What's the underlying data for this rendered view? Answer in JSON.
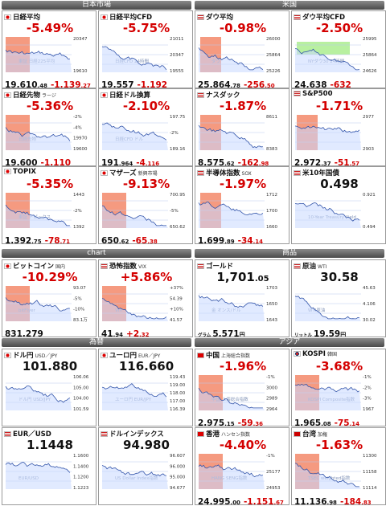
{
  "sections": {
    "japan": "日本市場",
    "us": "米国",
    "chart": "chart",
    "commodity": "商品",
    "fx": "為替",
    "asia": "アジア"
  },
  "panels": [
    {
      "id": "nikkei",
      "flag": "jp",
      "title": "日経平均",
      "sub": "",
      "pct": "-5.49%",
      "main": "19,610",
      "dec": ".48",
      "chg": "-1,139",
      "chgdec": ".27",
      "ticks": [
        "20347",
        "19610"
      ],
      "wm": "東証 日経225平均",
      "prev": "",
      "shade": "left"
    },
    {
      "id": "nikkeicfd",
      "flag": "jp",
      "title": "日経平均CFD",
      "sub": "",
      "pct": "-5.75%",
      "main": "19,557",
      "dec": "",
      "chg": "-1,192",
      "chgdec": "",
      "ticks": [
        "21011",
        "20347",
        "19555"
      ],
      "wm": "日経CFD 24時間",
      "prev": "",
      "shade": "none"
    },
    {
      "id": "dow",
      "flag": "us",
      "title": "ダウ平均",
      "sub": "",
      "pct": "-0.98%",
      "main": "25,864",
      "dec": ".78",
      "chg": "-256",
      "chgdec": ".50",
      "ticks": [
        "26000",
        "25864",
        "25226"
      ],
      "wm": "ダウ",
      "prev": "",
      "shade": "right"
    },
    {
      "id": "dowcfd",
      "flag": "us",
      "title": "ダウ平均CFD",
      "sub": "",
      "pct": "-2.50%",
      "main": "24,638",
      "dec": "",
      "chg": "-632",
      "chgdec": "",
      "ticks": [
        "25995",
        "25864",
        "24626"
      ],
      "wm": "NYダウ30 24時間",
      "prev": "",
      "shade": "green"
    },
    {
      "id": "nikkeifut",
      "flag": "jp",
      "title": "日経先物",
      "sub": "ラージ",
      "pct": "-5.36%",
      "main": "19,600",
      "dec": "",
      "chg": "-1,110",
      "chgdec": "",
      "ticks": [
        "-2%",
        "-4%",
        "19970",
        "19600"
      ],
      "wm": "日経先物",
      "prev": "",
      "shade": "left"
    },
    {
      "id": "nikkeiusd",
      "flag": "jp",
      "title": "日経ドル換算",
      "sub": "",
      "pct": "-2.10%",
      "main": "191",
      "dec": ".964",
      "chg": "-4",
      "chgdec": ".116",
      "ticks": [
        "197.75",
        "-2%",
        "189.16"
      ],
      "wm": "日経CFD ドル",
      "prev": "",
      "shade": "none"
    },
    {
      "id": "nasdaq",
      "flag": "us",
      "title": "ナスダック",
      "sub": "",
      "pct": "-1.87%",
      "main": "8,575",
      "dec": ".62",
      "chg": "-162",
      "chgdec": ".98",
      "ticks": [
        "8611",
        "8383"
      ],
      "wm": "",
      "prev": "",
      "shade": "right"
    },
    {
      "id": "sp500",
      "flag": "us",
      "title": "S&P500",
      "sub": "",
      "pct": "-1.71%",
      "main": "2,972",
      "dec": ".37",
      "chg": "-51",
      "chgdec": ".57",
      "ticks": [
        "2977",
        "2903"
      ],
      "wm": "",
      "prev": "",
      "shade": "right"
    },
    {
      "id": "topix",
      "flag": "jp",
      "title": "TOPIX",
      "sub": "",
      "pct": "-5.35%",
      "main": "1,392",
      "dec": ".75",
      "chg": "-78",
      "chgdec": ".71",
      "ticks": [
        "1443",
        "-2%",
        "1392"
      ],
      "wm": "東証 トピックス",
      "prev": "",
      "shade": "left"
    },
    {
      "id": "mothers",
      "flag": "jp",
      "title": "マザーズ",
      "sub": "新興市場",
      "pct": "-9.13%",
      "main": "650",
      "dec": ".62",
      "chg": "-65",
      "chgdec": ".38",
      "ticks": [
        "700.95",
        "-5%",
        "650.62"
      ],
      "wm": "",
      "prev": "",
      "shade": "left"
    },
    {
      "id": "sox",
      "flag": "us",
      "title": "半導体指数",
      "sub": "SOX",
      "pct": "-1.97%",
      "main": "1,699",
      "dec": ".89",
      "chg": "-34",
      "chgdec": ".14",
      "ticks": [
        "1712",
        "1700",
        "1660"
      ],
      "wm": "",
      "prev": "",
      "shade": "right"
    },
    {
      "id": "us10y",
      "flag": "us",
      "title": "米10年国債",
      "sub": "",
      "pct": "0.498",
      "main": "",
      "dec": "",
      "chg": "",
      "chgdec": "",
      "ticks": [
        "0.921",
        "0.494"
      ],
      "wm": "10-Year Treasury Yield",
      "prev": "",
      "shade": "none"
    },
    {
      "id": "btc",
      "flag": "jp",
      "title": "ビットコイン",
      "sub": "国内",
      "pct": "-10.29%",
      "main": "831,279",
      "dec": "",
      "chg": "",
      "chgdec": "",
      "ticks": [
        "93.07",
        "-5%",
        "-10%",
        "83.1万"
      ],
      "wm": "bitFlyer",
      "prev": "",
      "shade": "left"
    },
    {
      "id": "vix",
      "flag": "us",
      "title": "恐怖指数",
      "sub": "VIX",
      "pct": "+5.86%",
      "main": "41",
      "dec": ".94",
      "chg": "+2",
      "chgdec": ".32",
      "ticks": [
        "+37%",
        "54.39",
        "+10%",
        "41.57"
      ],
      "wm": "VIX",
      "prev": "",
      "shade": "left"
    },
    {
      "id": "gold",
      "flag": "us",
      "title": "ゴールド",
      "sub": "",
      "pct": "1,701",
      "pctdec": ".05",
      "main": "5,571",
      "dec": "円",
      "chg": "",
      "chgdec": "",
      "ticks": [
        "1703",
        "1650",
        "1643"
      ],
      "wm": "金 オンス/ドル",
      "prev": "グラム",
      "shade": "none"
    },
    {
      "id": "oil",
      "flag": "us",
      "title": "原油",
      "sub": "WTI",
      "pct": "30.58",
      "main": "19.59",
      "dec": "円",
      "chg": "",
      "chgdec": "",
      "ticks": [
        "45.63",
        "4.106",
        "30.02"
      ],
      "wm": "WTI原油",
      "prev": "リットル",
      "shade": "none"
    },
    {
      "id": "usdjpy",
      "flag": "jp",
      "title": "ドル円",
      "sub": "USD／JPY",
      "pct": "101.880",
      "main": "",
      "dec": "",
      "chg": "",
      "chgdec": "",
      "ticks": [
        "106.06",
        "105.00",
        "104.00",
        "101.59"
      ],
      "wm": "ドル円 USD/JPY",
      "prev": "",
      "shade": "none"
    },
    {
      "id": "eurjpy",
      "flag": "jp",
      "title": "ユーロ円",
      "sub": "EUR／JPY",
      "pct": "116.660",
      "main": "",
      "dec": "",
      "chg": "",
      "chgdec": "",
      "ticks": [
        "119.43",
        "119.00",
        "118.00",
        "117.00",
        "116.39"
      ],
      "wm": "ユーロ円 EUR/JPY",
      "prev": "",
      "shade": "none"
    },
    {
      "id": "china",
      "flag": "cn",
      "title": "中国",
      "sub": "上海総合指数",
      "pct": "-1.96%",
      "main": "2,975",
      "dec": ".15",
      "chg": "-59",
      "chgdec": ".36",
      "ticks": [
        "-1%",
        "3000",
        "2989",
        "2964"
      ],
      "wm": "中国 上海総合指数",
      "prev": "",
      "shade": "left"
    },
    {
      "id": "kospi",
      "flag": "kr",
      "title": "KOSPI",
      "sub": "韓国",
      "pct": "-3.68%",
      "main": "1,965",
      "dec": ".08",
      "chg": "-75",
      "chgdec": ".14",
      "ticks": [
        "-1%",
        "-2%",
        "-3%",
        "1967"
      ],
      "wm": "KOSPI Composite指数",
      "prev": "",
      "shade": "left"
    },
    {
      "id": "eurusd",
      "flag": "us",
      "title": "EUR／USD",
      "sub": "",
      "pct": "1.1448",
      "main": "",
      "dec": "",
      "chg": "",
      "chgdec": "",
      "ticks": [
        "1.1600",
        "1.1400",
        "1.1200",
        "1.1223"
      ],
      "wm": "EUR/USD",
      "prev": "",
      "shade": "none"
    },
    {
      "id": "dxy",
      "flag": "us",
      "title": "ドルインデックス",
      "sub": "",
      "pct": "94.980",
      "main": "",
      "dec": "",
      "chg": "",
      "chgdec": "",
      "ticks": [
        "96.607",
        "96.000",
        "95.000",
        "94.677"
      ],
      "wm": "US Dollar Index指数",
      "prev": "",
      "shade": "none"
    },
    {
      "id": "hk",
      "flag": "hk",
      "title": "香港",
      "sub": "ハンセン指数",
      "pct": "-4.40%",
      "main": "24,995",
      "dec": ".00",
      "chg": "-1,151",
      "chgdec": ".67",
      "ticks": [
        "-1%",
        "25177",
        "24953"
      ],
      "wm": "HANG SENG指数",
      "prev": "",
      "shade": "left"
    },
    {
      "id": "tw",
      "flag": "tw",
      "title": "台湾",
      "sub": "加権",
      "pct": "-1.63%",
      "main": "11,136",
      "dec": ".98",
      "chg": "-184",
      "chgdec": ".83",
      "ticks": [
        "11300",
        "11158",
        "11114"
      ],
      "wm": "TSEC weighted指数",
      "prev": "",
      "shade": "left"
    }
  ],
  "colors": {
    "neg": "#d40000",
    "line": "#3355aa",
    "shadeRed": "#f59a80",
    "shadeGreen": "#b8f0a0",
    "fill": "#c9d8ff"
  }
}
